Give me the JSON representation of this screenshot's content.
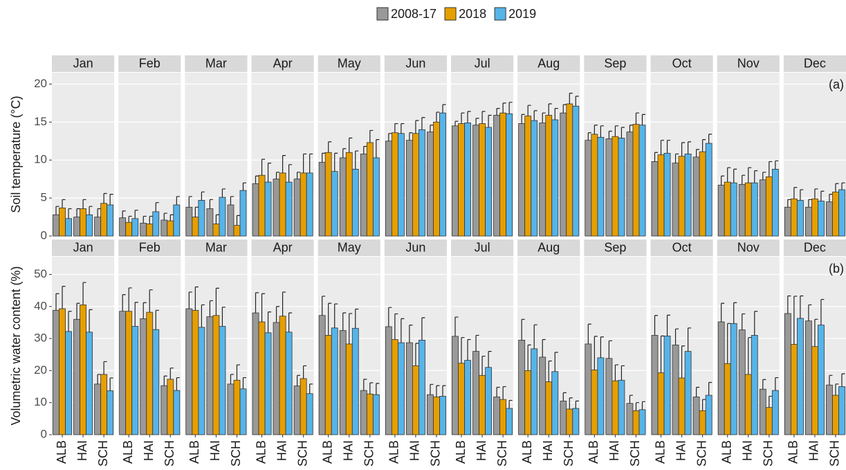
{
  "chart_data": [
    {
      "type": "bar",
      "y_label": "Soil temperature (°C)",
      "annotation": "(a)",
      "facets": [
        "Jan",
        "Feb",
        "Mar",
        "Apr",
        "May",
        "Jun",
        "Jul",
        "Aug",
        "Sep",
        "Oct",
        "Nov",
        "Dec"
      ],
      "ylim": [
        0,
        21.5
      ],
      "yticks": [
        0,
        5,
        10,
        15,
        20
      ],
      "grid": true,
      "series": [
        {
          "name": "2008-17",
          "color": "#999999",
          "values": [
            [
              2.8,
              2.5,
              2.5
            ],
            [
              2.4,
              1.7,
              2.1
            ],
            [
              3.8,
              3.6,
              4.1
            ],
            [
              6.9,
              7.5,
              7.5
            ],
            [
              9.7,
              10.3,
              10.8
            ],
            [
              12.5,
              12.6,
              13.7
            ],
            [
              14.5,
              14.6,
              15.9
            ],
            [
              14.8,
              14.9,
              16.2
            ],
            [
              12.6,
              12.8,
              13.7
            ],
            [
              9.8,
              9.6,
              10.4
            ],
            [
              6.7,
              6.8,
              7.4
            ],
            [
              3.8,
              3.8,
              4.5
            ]
          ],
          "errors": [
            [
              1.1,
              1.1,
              1.1
            ],
            [
              0.9,
              0.9,
              0.9
            ],
            [
              1.4,
              1.2,
              1.1
            ],
            [
              1.0,
              0.9,
              0.9
            ],
            [
              1.2,
              1.2,
              1.0
            ],
            [
              1.0,
              1.0,
              0.9
            ],
            [
              0.6,
              0.9,
              0.9
            ],
            [
              1.2,
              1.3,
              1.1
            ],
            [
              1.0,
              1.0,
              0.9
            ],
            [
              1.2,
              1.2,
              1.0
            ],
            [
              1.2,
              1.2,
              1.0
            ],
            [
              1.0,
              1.0,
              1.0
            ]
          ]
        },
        {
          "name": "2018",
          "color": "#e69f00",
          "values": [
            [
              3.7,
              3.6,
              4.3
            ],
            [
              1.8,
              1.6,
              2.0
            ],
            [
              2.5,
              1.6,
              1.4
            ],
            [
              8.0,
              8.3,
              8.3
            ],
            [
              11.0,
              11.0,
              12.3
            ],
            [
              13.6,
              13.5,
              15.0
            ],
            [
              14.8,
              14.8,
              16.2
            ],
            [
              15.8,
              15.9,
              17.4
            ],
            [
              13.4,
              13.1,
              14.7
            ],
            [
              10.7,
              10.5,
              11.1
            ],
            [
              7.1,
              7.0,
              7.8
            ],
            [
              4.9,
              4.9,
              5.8
            ]
          ],
          "errors": [
            [
              1.1,
              1.2,
              1.3
            ],
            [
              0.8,
              1.0,
              0.8
            ],
            [
              1.3,
              1.2,
              1.3
            ],
            [
              2.1,
              2.3,
              2.5
            ],
            [
              1.4,
              1.9,
              1.6
            ],
            [
              1.2,
              1.7,
              1.3
            ],
            [
              1.4,
              1.6,
              1.3
            ],
            [
              1.4,
              1.5,
              1.4
            ],
            [
              1.2,
              1.4,
              1.5
            ],
            [
              1.9,
              1.8,
              1.6
            ],
            [
              1.9,
              2.0,
              2.0
            ],
            [
              1.5,
              1.3,
              1.1
            ]
          ]
        },
        {
          "name": "2019",
          "color": "#56b4e9",
          "values": [
            [
              2.3,
              2.8,
              4.1
            ],
            [
              2.3,
              3.2,
              4.1
            ],
            [
              4.7,
              5.1,
              6.0
            ],
            [
              7.1,
              7.1,
              8.3
            ],
            [
              8.5,
              8.8,
              10.3
            ],
            [
              13.5,
              14.0,
              16.2
            ],
            [
              14.9,
              14.3,
              16.1
            ],
            [
              15.2,
              15.3,
              17.1
            ],
            [
              13.0,
              12.9,
              14.6
            ],
            [
              10.9,
              10.8,
              12.2
            ],
            [
              7.0,
              7.0,
              8.8
            ],
            [
              4.7,
              4.6,
              6.1
            ]
          ],
          "errors": [
            [
              1.3,
              1.1,
              1.4
            ],
            [
              1.1,
              1.2,
              1.1
            ],
            [
              1.1,
              1.1,
              1.0
            ],
            [
              2.5,
              2.3,
              2.5
            ],
            [
              2.4,
              2.4,
              2.4
            ],
            [
              1.3,
              1.6,
              1.1
            ],
            [
              1.5,
              1.6,
              1.5
            ],
            [
              1.3,
              1.5,
              1.3
            ],
            [
              1.5,
              1.4,
              1.4
            ],
            [
              1.7,
              1.6,
              1.2
            ],
            [
              1.8,
              1.6,
              1.1
            ],
            [
              1.4,
              1.3,
              0.9
            ]
          ]
        }
      ]
    },
    {
      "type": "bar",
      "y_label": "Volumetric water content (%)",
      "annotation": "(b)",
      "facets": [
        "Jan",
        "Feb",
        "Mar",
        "Apr",
        "May",
        "Jun",
        "Jul",
        "Aug",
        "Sep",
        "Oct",
        "Nov",
        "Dec"
      ],
      "categories": [
        "ALB",
        "HAI",
        "SCH"
      ],
      "ylim": [
        0,
        55.5
      ],
      "yticks": [
        0,
        10,
        20,
        30,
        40,
        50
      ],
      "grid": true,
      "series": [
        {
          "color": "#999999",
          "values": [
            [
              38.8,
              36.0,
              15.8
            ],
            [
              38.5,
              36.2,
              15.3
            ],
            [
              39.3,
              36.8,
              15.8
            ],
            [
              38.0,
              35.0,
              15.2
            ],
            [
              37.2,
              32.5,
              13.8
            ],
            [
              33.7,
              28.7,
              12.5
            ],
            [
              30.7,
              26.0,
              11.8
            ],
            [
              29.5,
              24.2,
              10.5
            ],
            [
              28.3,
              23.8,
              9.8
            ],
            [
              31.0,
              28.0,
              11.8
            ],
            [
              35.2,
              32.7,
              14.2
            ],
            [
              37.8,
              35.5,
              15.5
            ]
          ],
          "errors": [
            [
              5.2,
              5.0,
              3.0
            ],
            [
              5.2,
              5.0,
              3.0
            ],
            [
              5.2,
              5.0,
              3.0
            ],
            [
              6.3,
              5.0,
              3.3
            ],
            [
              6.0,
              5.5,
              3.5
            ],
            [
              6.0,
              5.5,
              3.2
            ],
            [
              6.0,
              5.0,
              3.0
            ],
            [
              6.5,
              5.5,
              2.6
            ],
            [
              6.2,
              5.5,
              2.5
            ],
            [
              6.2,
              5.0,
              3.0
            ],
            [
              5.8,
              5.0,
              3.0
            ],
            [
              5.5,
              5.0,
              3.0
            ]
          ]
        },
        {
          "color": "#e69f00",
          "values": [
            [
              39.3,
              40.5,
              18.8
            ],
            [
              38.5,
              38.2,
              17.3
            ],
            [
              38.8,
              37.2,
              17.0
            ],
            [
              35.2,
              37.0,
              17.5
            ],
            [
              31.0,
              28.3,
              12.7
            ],
            [
              29.7,
              21.5,
              11.8
            ],
            [
              22.3,
              18.5,
              11.0
            ],
            [
              20.0,
              16.5,
              8.0
            ],
            [
              20.2,
              16.8,
              7.5
            ],
            [
              19.3,
              17.7,
              7.5
            ],
            [
              22.2,
              18.8,
              8.5
            ],
            [
              28.2,
              27.5,
              12.3
            ]
          ],
          "errors": [
            [
              7.0,
              7.0,
              4.0
            ],
            [
              7.3,
              7.0,
              3.5
            ],
            [
              7.3,
              8.5,
              4.8
            ],
            [
              8.8,
              7.5,
              4.0
            ],
            [
              10.0,
              9.5,
              3.5
            ],
            [
              8.0,
              7.0,
              3.5
            ],
            [
              8.0,
              6.0,
              4.0
            ],
            [
              8.0,
              6.5,
              3.5
            ],
            [
              10.5,
              5.0,
              2.5
            ],
            [
              11.5,
              10.0,
              3.5
            ],
            [
              12.5,
              11.5,
              3.5
            ],
            [
              15.0,
              8.5,
              3.5
            ]
          ]
        },
        {
          "color": "#56b4e9",
          "values": [
            [
              32.2,
              32.0,
              13.7
            ],
            [
              33.8,
              32.8,
              13.8
            ],
            [
              33.5,
              33.8,
              14.3
            ],
            [
              31.8,
              32.0,
              12.8
            ],
            [
              33.3,
              33.2,
              12.5
            ],
            [
              28.7,
              29.5,
              12.0
            ],
            [
              23.2,
              21.0,
              8.2
            ],
            [
              26.8,
              19.7,
              8.2
            ],
            [
              24.0,
              17.0,
              7.8
            ],
            [
              30.8,
              26.0,
              12.3
            ],
            [
              34.7,
              31.0,
              13.8
            ],
            [
              36.3,
              34.2,
              15.0
            ]
          ],
          "errors": [
            [
              6.3,
              7.0,
              4.0
            ],
            [
              7.5,
              6.0,
              4.0
            ],
            [
              7.0,
              6.0,
              3.5
            ],
            [
              6.5,
              6.0,
              3.0
            ],
            [
              7.5,
              6.0,
              3.5
            ],
            [
              7.5,
              7.0,
              3.3
            ],
            [
              6.5,
              5.0,
              2.5
            ],
            [
              7.5,
              6.0,
              2.3
            ],
            [
              6.5,
              4.5,
              2.5
            ],
            [
              6.5,
              7.3,
              4.0
            ],
            [
              6.5,
              7.5,
              4.0
            ],
            [
              7.0,
              8.0,
              4.0
            ]
          ]
        }
      ]
    }
  ]
}
